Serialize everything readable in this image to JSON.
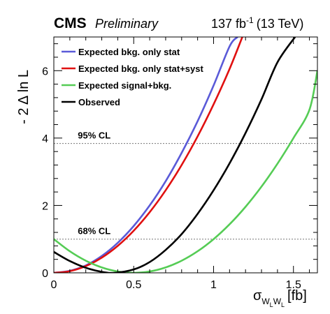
{
  "header": {
    "experiment": "CMS",
    "status": "Preliminary",
    "lumi_value": "137 fb",
    "lumi_exp": "-1",
    "lumi_energy": "(13 TeV)"
  },
  "axes": {
    "ylabel": "- 2 Δ ln L",
    "xlabel_sigma": "σ",
    "xlabel_sub": "W",
    "xlabel_subsub": "L",
    "xlabel_sub2": "W",
    "xlabel_subsub2": "L",
    "xlabel_unit": "[fb]"
  },
  "chart_data": {
    "type": "line",
    "xlim": [
      0,
      1.65
    ],
    "ylim": [
      0,
      7
    ],
    "x_ticks": [
      0,
      0.5,
      1,
      1.5
    ],
    "x_tick_labels": [
      "0",
      "0.5",
      "1",
      "1.5"
    ],
    "y_ticks": [
      0,
      2,
      4,
      6
    ],
    "y_tick_labels": [
      "0",
      "2",
      "4",
      "6"
    ],
    "grid": false,
    "legend_position": "top-left",
    "reference_lines": [
      {
        "y": 3.84,
        "label": "95% CL"
      },
      {
        "y": 1.0,
        "label": "68% CL"
      }
    ],
    "series": [
      {
        "name": "Expected bkg. only stat",
        "color": "#5a5ad8",
        "x": [
          0,
          0.1,
          0.2,
          0.3,
          0.4,
          0.5,
          0.6,
          0.7,
          0.8,
          0.9,
          1.0,
          1.1,
          1.15
        ],
        "y": [
          0,
          0.06,
          0.22,
          0.5,
          0.89,
          1.39,
          2.0,
          2.72,
          3.56,
          4.5,
          5.56,
          6.72,
          7.0
        ]
      },
      {
        "name": "Expected bkg. only stat+syst",
        "color": "#e01010",
        "x": [
          0,
          0.1,
          0.2,
          0.3,
          0.4,
          0.5,
          0.6,
          0.7,
          0.8,
          0.9,
          1.0,
          1.1,
          1.18
        ],
        "y": [
          0,
          0.05,
          0.2,
          0.45,
          0.8,
          1.25,
          1.8,
          2.45,
          3.2,
          4.05,
          5.0,
          6.05,
          7.0
        ]
      },
      {
        "name": "Expected signal+bkg.",
        "color": "#55cc55",
        "x": [
          0,
          0.1,
          0.2,
          0.3,
          0.4,
          0.5,
          0.6,
          0.7,
          0.8,
          0.9,
          1.0,
          1.1,
          1.2,
          1.3,
          1.4,
          1.5,
          1.6,
          1.65
        ],
        "y": [
          1.0,
          0.64,
          0.36,
          0.16,
          0.04,
          0.0,
          0.04,
          0.16,
          0.36,
          0.64,
          1.0,
          1.44,
          1.96,
          2.56,
          3.24,
          4.0,
          4.84,
          6.0
        ]
      },
      {
        "name": "Observed",
        "color": "#000000",
        "x": [
          0,
          0.1,
          0.2,
          0.3,
          0.38,
          0.5,
          0.6,
          0.7,
          0.8,
          0.9,
          1.0,
          1.1,
          1.2,
          1.3,
          1.4,
          1.51
        ],
        "y": [
          0.62,
          0.35,
          0.15,
          0.03,
          0.0,
          0.1,
          0.32,
          0.68,
          1.15,
          1.75,
          2.45,
          3.25,
          4.15,
          5.15,
          6.25,
          7.0
        ]
      }
    ]
  }
}
